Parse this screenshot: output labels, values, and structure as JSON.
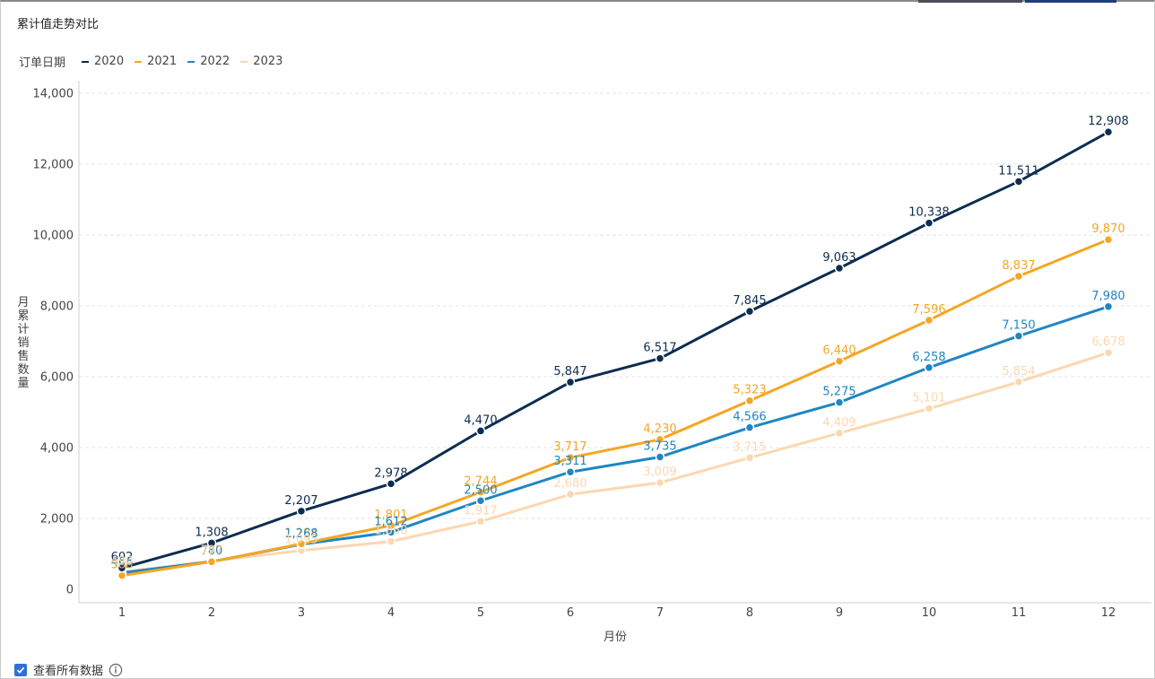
{
  "title": "累计值走势对比",
  "legend": {
    "title": "订单日期",
    "items": [
      {
        "name": "2020",
        "color": "#0b2d50"
      },
      {
        "name": "2021",
        "color": "#f5a623"
      },
      {
        "name": "2022",
        "color": "#1f86c3"
      },
      {
        "name": "2023",
        "color": "#fcd7b0"
      }
    ]
  },
  "footer": {
    "checkbox_label": "查看所有数据",
    "checked": true,
    "info_icon": "info-circle-icon"
  },
  "chart_data": {
    "type": "line",
    "title": "累计值走势对比",
    "xlabel": "月份",
    "ylabel": "月累计销售数量",
    "x": [
      "1",
      "2",
      "3",
      "4",
      "5",
      "6",
      "7",
      "8",
      "9",
      "10",
      "11",
      "12"
    ],
    "ylim": [
      0,
      14000
    ],
    "yticks": [
      "0",
      "2,000",
      "4,000",
      "6,000",
      "8,000",
      "10,000",
      "12,000",
      "14,000"
    ],
    "ytick_values": [
      0,
      2000,
      4000,
      6000,
      8000,
      10000,
      12000,
      14000
    ],
    "grid": true,
    "legend_position": "top-left",
    "series": [
      {
        "name": "2020",
        "color": "#0b2d50",
        "values": [
          602,
          1308,
          2207,
          2978,
          4470,
          5847,
          6517,
          7845,
          9063,
          10338,
          11511,
          12908
        ],
        "labels": [
          "602",
          "1,308",
          "2,207",
          "2,978",
          "4,470",
          "5,847",
          "6,517",
          "7,845",
          "9,063",
          "10,338",
          "11,511",
          "12,908"
        ]
      },
      {
        "name": "2021",
        "color": "#f5a623",
        "values": [
          388,
          777,
          1284,
          1801,
          2744,
          3717,
          4230,
          5323,
          6440,
          7596,
          8837,
          9870
        ],
        "labels": [
          "388",
          "777",
          "1,284",
          "1,801",
          "2,744",
          "3,717",
          "4,230",
          "5,323",
          "6,440",
          "7,596",
          "8,837",
          "9,870"
        ]
      },
      {
        "name": "2022",
        "color": "#1f86c3",
        "values": [
          466,
          780,
          1268,
          1612,
          2500,
          3311,
          3735,
          4566,
          5275,
          6258,
          7150,
          7980
        ],
        "labels": [
          "466",
          "780",
          "1,268",
          "1,612",
          "2,500",
          "3,311",
          "3,735",
          "4,566",
          "5,275",
          "6,258",
          "7,150",
          "7,980"
        ]
      },
      {
        "name": "2023",
        "color": "#fcd7b0",
        "values": [
          490,
          797,
          1095,
          1350,
          1917,
          2680,
          3009,
          3715,
          4409,
          5101,
          5854,
          6678
        ],
        "labels": [
          "490",
          "797",
          "1,095",
          "1,350",
          "1,917",
          "2,680",
          "3,009",
          "3,715",
          "4,409",
          "5,101",
          "5,854",
          "6,678"
        ]
      }
    ]
  }
}
